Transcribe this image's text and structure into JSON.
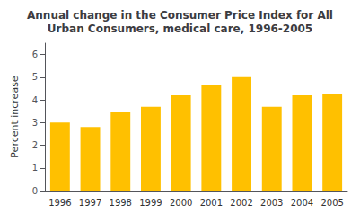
{
  "chart_data": {
    "type": "bar",
    "title": "Annual change in the Consumer Price Index for All\nUrban Consumers, medical care, 1996-2005",
    "ylabel": "Percent increase",
    "categories": [
      "1996",
      "1997",
      "1998",
      "1999",
      "2000",
      "2001",
      "2002",
      "2003",
      "2004",
      "2005"
    ],
    "values": [
      3.0,
      2.8,
      3.45,
      3.7,
      4.2,
      4.65,
      5.0,
      3.7,
      4.2,
      4.25
    ],
    "color": "#FFC000",
    "ylim": [
      0,
      6.5
    ],
    "yticks": [
      0,
      1,
      2,
      3,
      4,
      5,
      6
    ],
    "grid": false
  }
}
